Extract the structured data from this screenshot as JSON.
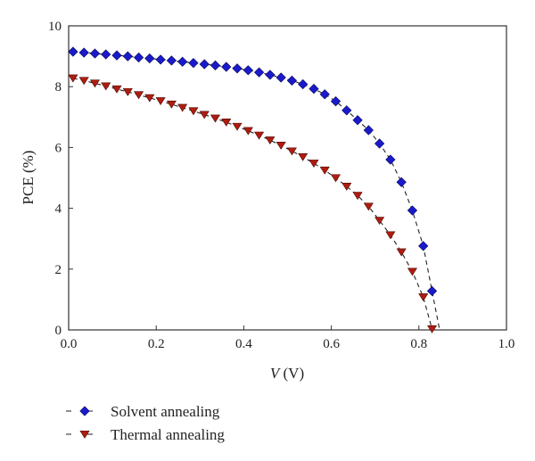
{
  "chart_data": {
    "type": "scatter",
    "title": "",
    "xlabel": {
      "var": "V",
      "unit": " (V)"
    },
    "ylabel": "PCE (%)",
    "xlim": [
      0,
      1.0
    ],
    "ylim": [
      0,
      10
    ],
    "xticks": [
      "0.0",
      "0.2",
      "0.4",
      "0.6",
      "0.8",
      "1.0"
    ],
    "xtick_values": [
      0,
      0.2,
      0.4,
      0.6,
      0.8,
      1.0
    ],
    "yticks": [
      "0",
      "2",
      "4",
      "6",
      "8",
      "10"
    ],
    "ytick_values": [
      0,
      2,
      4,
      6,
      8,
      10
    ],
    "grid": false,
    "legend_position": "bottom-left",
    "series": [
      {
        "name": "Solvent annealing",
        "marker": "diamond",
        "color": "#1a1acc",
        "line": "dashed",
        "x": [
          0.01,
          0.035,
          0.06,
          0.085,
          0.11,
          0.135,
          0.16,
          0.185,
          0.21,
          0.235,
          0.26,
          0.285,
          0.31,
          0.335,
          0.36,
          0.385,
          0.41,
          0.435,
          0.46,
          0.485,
          0.51,
          0.535,
          0.56,
          0.585,
          0.61,
          0.635,
          0.66,
          0.685,
          0.71,
          0.735,
          0.76,
          0.785,
          0.81,
          0.83
        ],
        "y": [
          9.15,
          9.12,
          9.09,
          9.06,
          9.03,
          9.0,
          8.96,
          8.93,
          8.89,
          8.86,
          8.82,
          8.78,
          8.74,
          8.7,
          8.65,
          8.6,
          8.54,
          8.47,
          8.39,
          8.3,
          8.2,
          8.08,
          7.93,
          7.75,
          7.52,
          7.22,
          6.9,
          6.57,
          6.13,
          5.6,
          4.86,
          3.93,
          2.76,
          1.28
        ]
      },
      {
        "name": "Thermal annealing",
        "marker": "triangle-down",
        "color": "#b01c10",
        "line": "dashed",
        "x": [
          0.01,
          0.035,
          0.06,
          0.085,
          0.11,
          0.135,
          0.16,
          0.185,
          0.21,
          0.235,
          0.26,
          0.285,
          0.31,
          0.335,
          0.36,
          0.385,
          0.41,
          0.435,
          0.46,
          0.485,
          0.51,
          0.535,
          0.56,
          0.585,
          0.61,
          0.635,
          0.66,
          0.685,
          0.71,
          0.735,
          0.76,
          0.785,
          0.81,
          0.83
        ],
        "y": [
          8.28,
          8.2,
          8.11,
          8.02,
          7.92,
          7.83,
          7.73,
          7.63,
          7.53,
          7.42,
          7.31,
          7.2,
          7.08,
          6.96,
          6.83,
          6.69,
          6.55,
          6.4,
          6.24,
          6.07,
          5.88,
          5.69,
          5.48,
          5.25,
          5.0,
          4.72,
          4.42,
          4.06,
          3.6,
          3.12,
          2.56,
          1.92,
          1.08,
          0.03
        ]
      }
    ]
  }
}
